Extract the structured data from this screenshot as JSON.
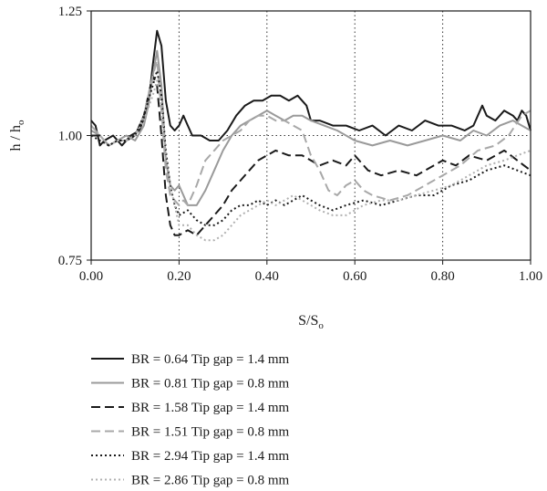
{
  "chart_data": {
    "type": "line",
    "xlabel": "S/S",
    "xlabel_sub": "o",
    "ylabel": "h / h",
    "ylabel_sub": "o",
    "xlim": [
      0,
      1
    ],
    "ylim": [
      0.75,
      1.25
    ],
    "xticks": [
      0,
      0.2,
      0.4,
      0.6,
      0.8,
      1.0
    ],
    "xtick_labels": [
      "0.00",
      "0.20",
      "0.40",
      "0.60",
      "0.80",
      "1.00"
    ],
    "yticks": [
      0.75,
      1.0,
      1.25
    ],
    "ytick_labels": [
      "0.75",
      "1.00",
      "1.25"
    ],
    "grid": "dotted vertical lines at 0.20, 0.40, 0.60, 0.80 and dotted horizontal line at 1.00",
    "legend_position": "below the plot",
    "series": [
      {
        "name": "BR = 0.64 Tip gap = 1.4 mm",
        "color": "#1a1a1a",
        "dash": "solid",
        "x": [
          0,
          0.01,
          0.02,
          0.03,
          0.05,
          0.07,
          0.09,
          0.11,
          0.13,
          0.14,
          0.15,
          0.16,
          0.17,
          0.18,
          0.19,
          0.2,
          0.21,
          0.22,
          0.23,
          0.25,
          0.27,
          0.29,
          0.31,
          0.33,
          0.35,
          0.37,
          0.39,
          0.41,
          0.43,
          0.45,
          0.47,
          0.48,
          0.49,
          0.5,
          0.52,
          0.55,
          0.58,
          0.61,
          0.64,
          0.67,
          0.7,
          0.73,
          0.76,
          0.79,
          0.82,
          0.85,
          0.87,
          0.89,
          0.9,
          0.92,
          0.94,
          0.96,
          0.97,
          0.98,
          0.99,
          1.0
        ],
        "y": [
          1.03,
          1.02,
          0.98,
          0.99,
          1.0,
          0.98,
          1.0,
          1.01,
          1.06,
          1.14,
          1.21,
          1.18,
          1.07,
          1.02,
          1.01,
          1.02,
          1.04,
          1.02,
          1.0,
          1.0,
          0.99,
          0.99,
          1.01,
          1.04,
          1.06,
          1.07,
          1.07,
          1.08,
          1.08,
          1.07,
          1.08,
          1.07,
          1.06,
          1.03,
          1.03,
          1.02,
          1.02,
          1.01,
          1.02,
          1.0,
          1.02,
          1.01,
          1.03,
          1.02,
          1.02,
          1.01,
          1.02,
          1.06,
          1.04,
          1.03,
          1.05,
          1.04,
          1.03,
          1.05,
          1.04,
          1.01
        ]
      },
      {
        "name": "BR = 0.81 Tip gap = 0.8 mm",
        "color": "#9a9a9a",
        "dash": "solid",
        "x": [
          0,
          0.02,
          0.04,
          0.06,
          0.08,
          0.1,
          0.12,
          0.13,
          0.14,
          0.15,
          0.16,
          0.17,
          0.18,
          0.19,
          0.2,
          0.22,
          0.24,
          0.26,
          0.28,
          0.3,
          0.32,
          0.34,
          0.36,
          0.38,
          0.4,
          0.42,
          0.44,
          0.46,
          0.48,
          0.5,
          0.53,
          0.56,
          0.6,
          0.64,
          0.68,
          0.72,
          0.76,
          0.8,
          0.84,
          0.87,
          0.9,
          0.93,
          0.96,
          0.98,
          1.0
        ],
        "y": [
          1.01,
          1.0,
          0.98,
          0.99,
          1.0,
          0.99,
          1.02,
          1.06,
          1.12,
          1.17,
          1.1,
          0.95,
          0.9,
          0.89,
          0.9,
          0.86,
          0.86,
          0.89,
          0.93,
          0.97,
          1.0,
          1.02,
          1.03,
          1.04,
          1.05,
          1.04,
          1.03,
          1.04,
          1.04,
          1.03,
          1.02,
          1.01,
          0.99,
          0.98,
          0.99,
          0.98,
          0.99,
          1.0,
          0.99,
          1.01,
          1.0,
          1.02,
          1.03,
          1.02,
          1.01
        ]
      },
      {
        "name": "BR = 1.58 Tip gap = 1.4 mm",
        "color": "#1a1a1a",
        "dash": "10,5",
        "x": [
          0,
          0.02,
          0.04,
          0.06,
          0.08,
          0.1,
          0.12,
          0.13,
          0.14,
          0.15,
          0.16,
          0.17,
          0.18,
          0.19,
          0.2,
          0.22,
          0.24,
          0.26,
          0.28,
          0.3,
          0.32,
          0.34,
          0.36,
          0.38,
          0.4,
          0.42,
          0.45,
          0.48,
          0.5,
          0.52,
          0.55,
          0.58,
          0.6,
          0.63,
          0.66,
          0.7,
          0.74,
          0.78,
          0.8,
          0.83,
          0.86,
          0.9,
          0.94,
          0.97,
          1.0
        ],
        "y": [
          1.0,
          1.0,
          0.98,
          0.99,
          0.99,
          1.0,
          1.04,
          1.08,
          1.12,
          1.1,
          1.0,
          0.88,
          0.82,
          0.8,
          0.8,
          0.81,
          0.8,
          0.82,
          0.84,
          0.86,
          0.89,
          0.91,
          0.93,
          0.95,
          0.96,
          0.97,
          0.96,
          0.96,
          0.95,
          0.94,
          0.95,
          0.94,
          0.96,
          0.93,
          0.92,
          0.93,
          0.92,
          0.94,
          0.95,
          0.94,
          0.96,
          0.95,
          0.97,
          0.95,
          0.93
        ]
      },
      {
        "name": "BR = 1.51 Tip gap = 0.8 mm",
        "color": "#a8a8a8",
        "dash": "10,5",
        "x": [
          0,
          0.02,
          0.04,
          0.06,
          0.08,
          0.1,
          0.12,
          0.14,
          0.15,
          0.16,
          0.17,
          0.18,
          0.19,
          0.2,
          0.21,
          0.22,
          0.24,
          0.26,
          0.28,
          0.3,
          0.32,
          0.34,
          0.36,
          0.38,
          0.4,
          0.42,
          0.44,
          0.46,
          0.48,
          0.5,
          0.52,
          0.54,
          0.56,
          0.58,
          0.6,
          0.62,
          0.64,
          0.68,
          0.72,
          0.76,
          0.8,
          0.84,
          0.88,
          0.92,
          0.95,
          0.98,
          1.0
        ],
        "y": [
          1.02,
          1.0,
          0.98,
          0.99,
          0.99,
          1.0,
          1.04,
          1.12,
          1.15,
          1.05,
          0.93,
          0.88,
          0.87,
          0.86,
          0.87,
          0.86,
          0.9,
          0.95,
          0.97,
          0.99,
          1.0,
          1.01,
          1.03,
          1.04,
          1.04,
          1.03,
          1.03,
          1.02,
          1.01,
          0.96,
          0.93,
          0.89,
          0.88,
          0.9,
          0.91,
          0.89,
          0.88,
          0.87,
          0.88,
          0.9,
          0.92,
          0.94,
          0.97,
          0.98,
          1.0,
          1.04,
          1.05
        ]
      },
      {
        "name": "BR = 2.94 Tip gap = 1.4 mm",
        "color": "#1a1a1a",
        "dash": "2,3",
        "x": [
          0,
          0.02,
          0.04,
          0.06,
          0.08,
          0.1,
          0.12,
          0.14,
          0.15,
          0.16,
          0.17,
          0.18,
          0.19,
          0.2,
          0.22,
          0.24,
          0.26,
          0.28,
          0.3,
          0.32,
          0.34,
          0.36,
          0.38,
          0.4,
          0.42,
          0.44,
          0.46,
          0.48,
          0.5,
          0.52,
          0.55,
          0.58,
          0.62,
          0.66,
          0.7,
          0.74,
          0.78,
          0.82,
          0.86,
          0.9,
          0.94,
          0.97,
          1.0
        ],
        "y": [
          1.0,
          0.99,
          0.98,
          0.99,
          0.99,
          1.0,
          1.04,
          1.1,
          1.13,
          1.08,
          0.97,
          0.9,
          0.86,
          0.84,
          0.85,
          0.83,
          0.82,
          0.82,
          0.83,
          0.85,
          0.86,
          0.86,
          0.87,
          0.86,
          0.87,
          0.86,
          0.87,
          0.88,
          0.87,
          0.86,
          0.85,
          0.86,
          0.87,
          0.86,
          0.87,
          0.88,
          0.88,
          0.9,
          0.91,
          0.93,
          0.94,
          0.93,
          0.92
        ]
      },
      {
        "name": "BR = 2.86 Tip gap = 0.8 mm",
        "color": "#b0b0b0",
        "dash": "2,3",
        "x": [
          0,
          0.02,
          0.04,
          0.06,
          0.08,
          0.1,
          0.12,
          0.14,
          0.15,
          0.16,
          0.17,
          0.18,
          0.19,
          0.2,
          0.22,
          0.24,
          0.26,
          0.28,
          0.3,
          0.32,
          0.34,
          0.36,
          0.38,
          0.4,
          0.42,
          0.44,
          0.46,
          0.48,
          0.5,
          0.52,
          0.55,
          0.58,
          0.62,
          0.66,
          0.7,
          0.74,
          0.78,
          0.82,
          0.86,
          0.9,
          0.94,
          0.97,
          1.0
        ],
        "y": [
          1.02,
          1.0,
          0.98,
          0.99,
          0.99,
          1.0,
          1.03,
          1.08,
          1.11,
          1.06,
          0.96,
          0.9,
          0.86,
          0.82,
          0.82,
          0.8,
          0.79,
          0.79,
          0.8,
          0.82,
          0.84,
          0.85,
          0.86,
          0.87,
          0.86,
          0.87,
          0.88,
          0.87,
          0.86,
          0.85,
          0.84,
          0.84,
          0.86,
          0.87,
          0.87,
          0.88,
          0.89,
          0.9,
          0.92,
          0.94,
          0.95,
          0.96,
          0.97
        ]
      }
    ]
  }
}
